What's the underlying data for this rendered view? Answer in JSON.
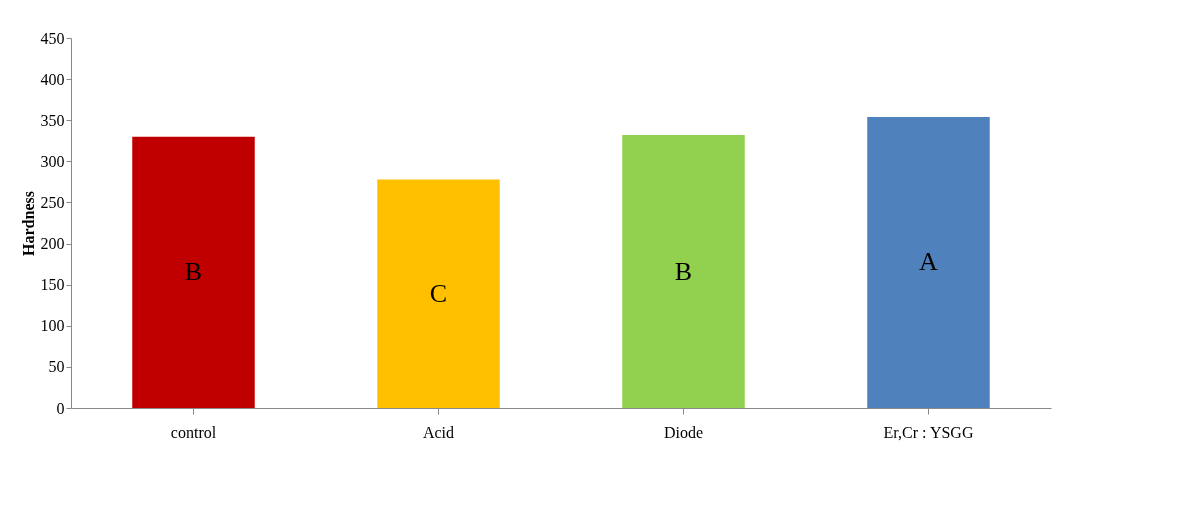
{
  "chart_data": {
    "type": "bar",
    "ylabel": "Hardness",
    "categories": [
      "control",
      "Acid",
      "Diode",
      "Er,Cr : YSGG"
    ],
    "values": [
      330,
      278,
      332,
      354
    ],
    "colors": [
      "#c00000",
      "#ffc000",
      "#92d050",
      "#4f81bd"
    ],
    "ylim": [
      0,
      450
    ],
    "yticks": [
      0,
      50,
      100,
      150,
      200,
      250,
      300,
      350,
      400,
      450
    ],
    "grid": false,
    "annotations": [
      "B",
      "C",
      "B",
      "A"
    ]
  }
}
